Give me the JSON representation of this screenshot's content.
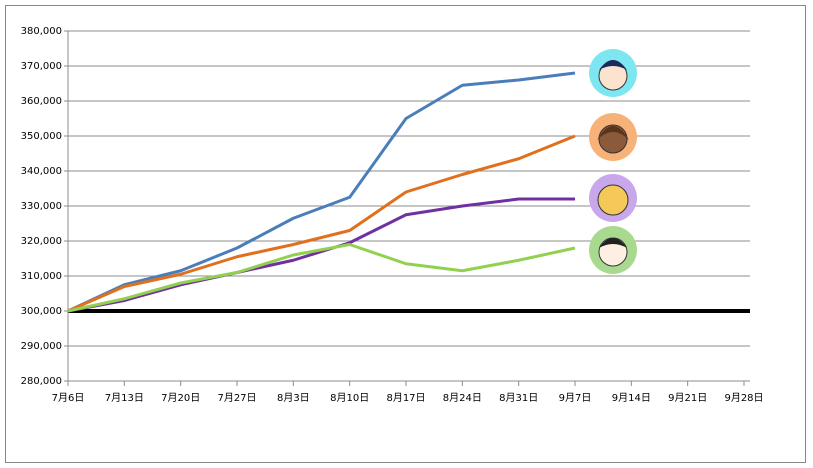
{
  "chart_data": {
    "type": "line",
    "categories": [
      "7月6日",
      "7月13日",
      "7月20日",
      "7月27日",
      "8月3日",
      "8月10日",
      "8月17日",
      "8月24日",
      "8月31日",
      "9月7日",
      "9月14日",
      "9月21日",
      "9月28日"
    ],
    "series": [
      {
        "color": "#4a7ebb",
        "values": [
          300000,
          307500,
          311500,
          318000,
          326500,
          332500,
          355000,
          364500,
          366000,
          368000,
          null,
          null,
          null
        ]
      },
      {
        "color": "#e0701e",
        "values": [
          300000,
          307000,
          310500,
          315500,
          319000,
          323000,
          334000,
          339000,
          343500,
          350000,
          null,
          null,
          null
        ]
      },
      {
        "color": "#7030a0",
        "values": [
          300000,
          303000,
          307500,
          311000,
          314500,
          319500,
          327500,
          330000,
          332000,
          332000,
          null,
          null,
          null
        ]
      },
      {
        "color": "#92d050",
        "values": [
          300000,
          303500,
          308000,
          311000,
          316000,
          319000,
          313500,
          311500,
          314500,
          318000,
          null,
          null,
          null
        ]
      }
    ],
    "reference_line": 300000,
    "ylim": [
      280000,
      380000
    ],
    "yticks": [
      {
        "value": 280000,
        "label": "280,000"
      },
      {
        "value": 290000,
        "label": "290,000"
      },
      {
        "value": 300000,
        "label": "300,000"
      },
      {
        "value": 310000,
        "label": "310,000"
      },
      {
        "value": 320000,
        "label": "320,000"
      },
      {
        "value": 330000,
        "label": "330,000"
      },
      {
        "value": 340000,
        "label": "340,000"
      },
      {
        "value": 350000,
        "label": "350,000"
      },
      {
        "value": 360000,
        "label": "360,000"
      },
      {
        "value": 370000,
        "label": "370,000"
      },
      {
        "value": 380000,
        "label": "380,000"
      }
    ],
    "grid": true
  }
}
